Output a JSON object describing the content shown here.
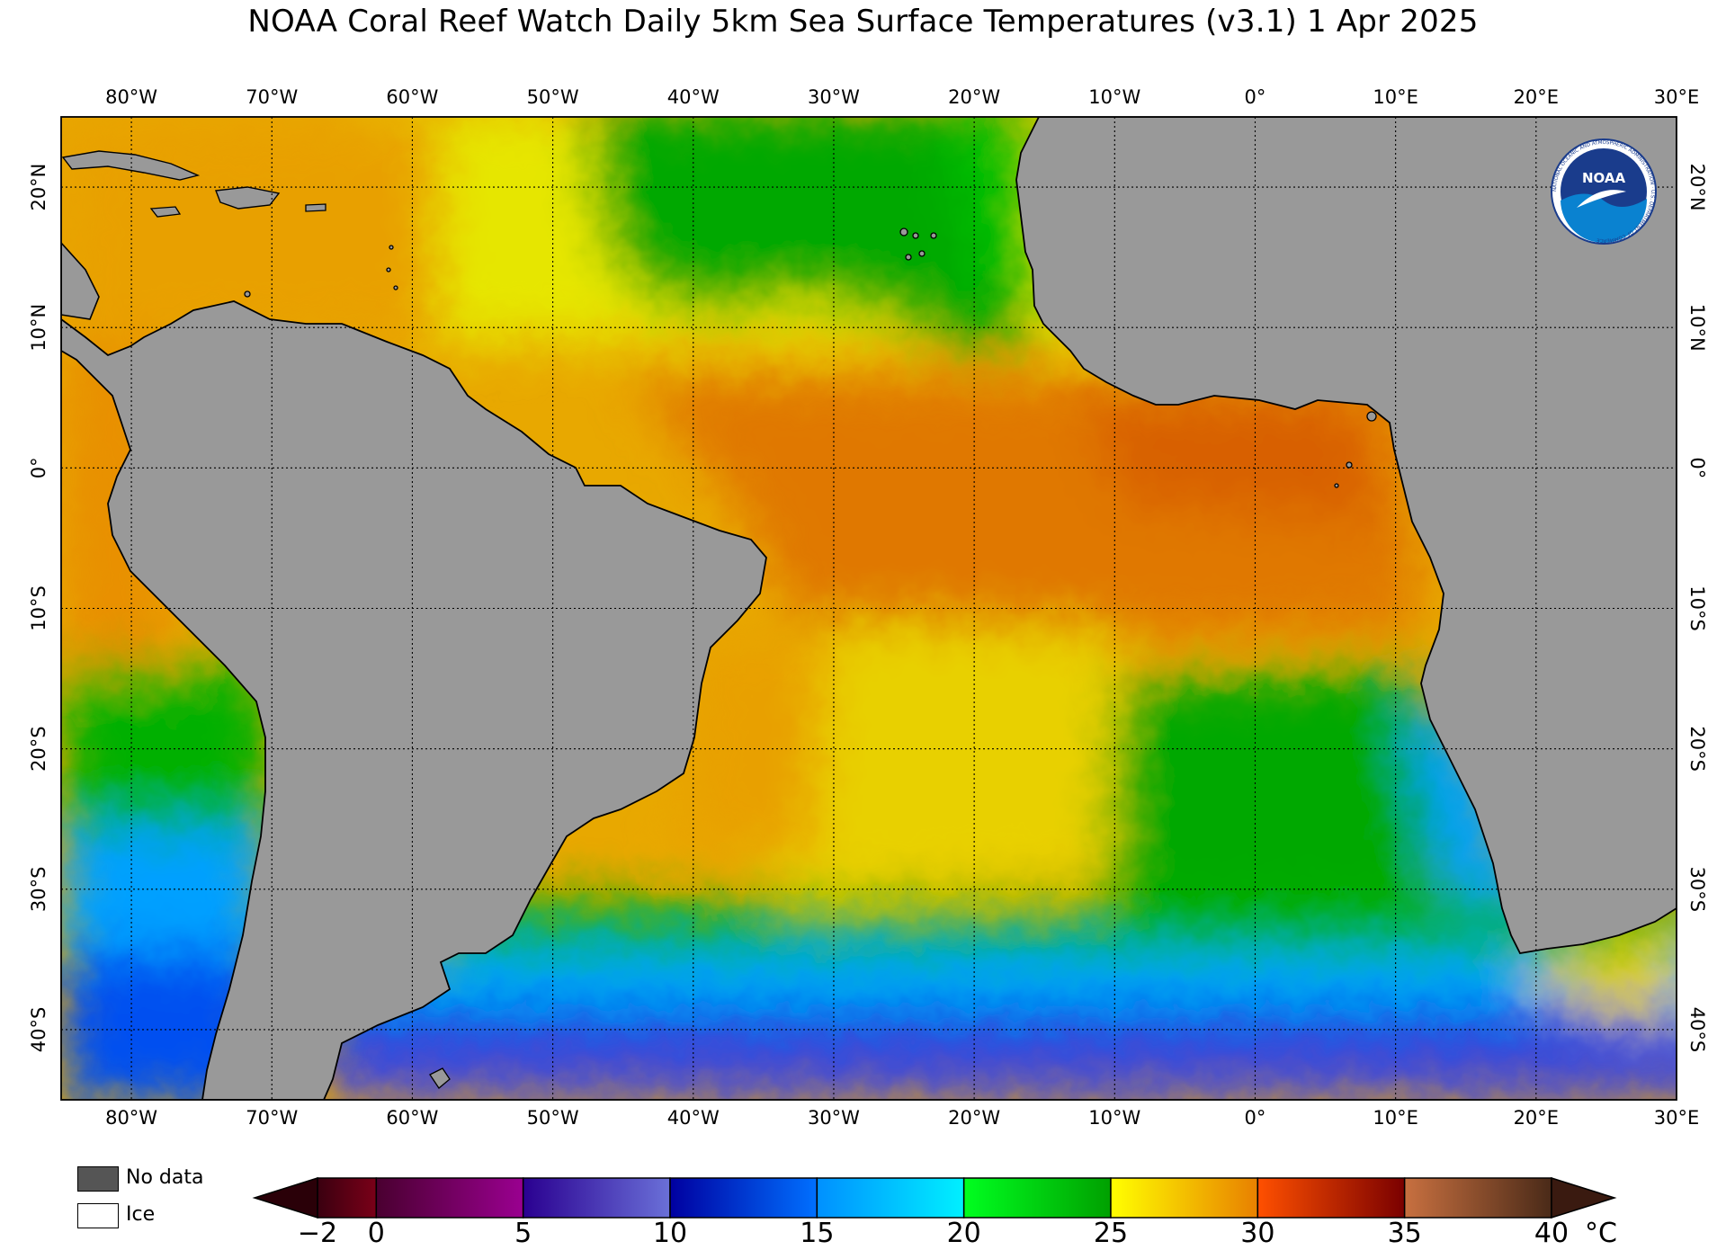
{
  "title": "NOAA Coral Reef Watch Daily 5km Sea Surface Temperatures  (v3.1)   1 Apr 2025",
  "logo_text": "NOAA",
  "logo_ring_text": "NATIONAL OCEANIC AND ATMOSPHERIC ADMINISTRATION · U.S. DEPARTMENT OF COMMERCE",
  "map": {
    "lon_range": [
      -85,
      30
    ],
    "lat_range": [
      -45,
      25
    ],
    "lon_ticks": [
      "80°W",
      "70°W",
      "60°W",
      "50°W",
      "40°W",
      "30°W",
      "20°W",
      "10°W",
      "0°",
      "10°E",
      "20°E",
      "30°E"
    ],
    "lat_ticks": [
      "20°N",
      "10°N",
      "0°",
      "10°S",
      "20°S",
      "30°S",
      "40°S"
    ],
    "land_color": "#999999",
    "grid": "dotted"
  },
  "legend": {
    "no_data_label": "No data",
    "no_data_color": "#555555",
    "ice_label": "Ice",
    "ice_color": "#ffffff"
  },
  "colorbar": {
    "unit": "°C",
    "range": [
      -2,
      40
    ],
    "ticks": [
      "−2",
      "0",
      "5",
      "10",
      "15",
      "20",
      "25",
      "30",
      "35",
      "40"
    ],
    "segments": [
      {
        "from": -2,
        "to": 0,
        "colors": [
          "#3a0010",
          "#7a0018"
        ]
      },
      {
        "from": 0,
        "to": 5,
        "colors": [
          "#4a0030",
          "#9a0090"
        ]
      },
      {
        "from": 5,
        "to": 10,
        "colors": [
          "#2a0090",
          "#6a70d8"
        ]
      },
      {
        "from": 10,
        "to": 15,
        "colors": [
          "#0000a0",
          "#0070ff"
        ]
      },
      {
        "from": 15,
        "to": 20,
        "colors": [
          "#0090ff",
          "#00f0ff"
        ]
      },
      {
        "from": 20,
        "to": 25,
        "colors": [
          "#00ff20",
          "#00a000"
        ]
      },
      {
        "from": 25,
        "to": 30,
        "colors": [
          "#ffff00",
          "#e88000"
        ]
      },
      {
        "from": 30,
        "to": 35,
        "colors": [
          "#ff5000",
          "#7a0000"
        ]
      },
      {
        "from": 35,
        "to": 40,
        "colors": [
          "#c87040",
          "#4a2a18"
        ]
      }
    ],
    "under_color": "#2a0008",
    "over_color": "#3a1a10"
  }
}
